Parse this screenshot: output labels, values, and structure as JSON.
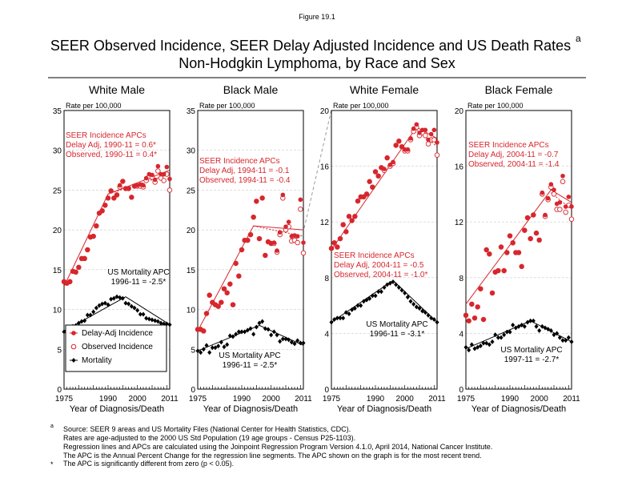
{
  "figure_label": "Figure 19.1",
  "title_line1": "SEER Observed Incidence, SEER Delay Adjusted Incidence and US Death Rates",
  "title_sup": "a",
  "title_line2": "Non-Hodgkin Lymphoma, by Race and Sex",
  "colors": {
    "incidence": "#d7262d",
    "mortality": "#000000",
    "grid": "#cccccc"
  },
  "legend": {
    "items": [
      "Delay-Adj Incidence",
      "Observed Incidence",
      "Mortality"
    ]
  },
  "footnotes": {
    "a_mark": "a",
    "star_mark": "*",
    "lines": [
      "Source: SEER 9 areas and US Mortality Files (National Center for Health Statistics, CDC).",
      "Rates are age-adjusted to the 2000 US Std Population (19 age groups - Census P25-1103).",
      "Regression lines and APCs are calculated using the Joinpoint Regression Program Version 4.1.0, April 2014, National Cancer Institute.",
      "The APC is the Annual Percent Change for the regression line segments. The APC shown on the graph is for the most recent trend."
    ],
    "star": "The APC is significantly different from zero (p < 0.05)."
  },
  "chart_data": [
    {
      "type": "scatter",
      "title": "White Male",
      "ylabel": "Rate per 100,000",
      "xlabel": "Year of Diagnosis/Death",
      "xlim": [
        1975,
        2011
      ],
      "ylim": [
        0,
        35
      ],
      "yticks": [
        0,
        5,
        10,
        15,
        20,
        25,
        30,
        35
      ],
      "xticks": [
        "1975",
        "1990",
        "2000",
        "2011"
      ],
      "grid": true,
      "legend_position": "bottom-left",
      "inc_text": [
        "SEER Incidence APCs",
        "Delay Adj, 1990-11 = 0.6*",
        "Observed, 1990-11 = 0.4*"
      ],
      "mort_text": [
        "US Mortality APC",
        "1996-11 = -2.5*"
      ],
      "delay_adj": [
        13.5,
        13.3,
        13.5,
        14.8,
        14.7,
        15.3,
        16.4,
        16.4,
        17.5,
        19.1,
        19.2,
        20.5,
        22.1,
        22.4,
        23.1,
        24.0,
        24.9,
        24.0,
        24.4,
        25.6,
        26.1,
        25.2,
        25.2,
        24.1,
        25.5,
        25.6,
        25.7,
        25.6,
        26.5,
        27.0,
        26.9,
        26.3,
        28.0,
        27.0,
        27.0,
        27.9,
        26.4
      ],
      "observed": [
        13.5,
        13.3,
        13.5,
        14.8,
        14.7,
        15.3,
        16.4,
        16.4,
        17.5,
        19.1,
        19.2,
        20.5,
        22.1,
        22.4,
        23.1,
        24.0,
        24.9,
        24.0,
        24.4,
        25.4,
        26.1,
        25.2,
        25.2,
        24.1,
        25.5,
        25.5,
        25.5,
        25.4,
        26.2,
        26.7,
        26.6,
        26.0,
        27.4,
        26.5,
        26.2,
        27.0,
        25.0
      ],
      "mortality": [
        7.2,
        7.4,
        7.6,
        7.9,
        8.0,
        8.3,
        8.5,
        8.6,
        9.3,
        9.3,
        9.7,
        10.2,
        10.5,
        10.7,
        10.8,
        10.6,
        11.3,
        11.4,
        11.6,
        11.5,
        11.4,
        10.8,
        10.7,
        10.4,
        10.2,
        9.9,
        9.4,
        9.4,
        8.9,
        8.8,
        8.7,
        8.6,
        8.5,
        8.3,
        8.2,
        8.2,
        8.1
      ],
      "inc_fit": [
        [
          1975,
          12.9
        ],
        [
          1990,
          24.5
        ],
        [
          2011,
          27.5
        ]
      ],
      "obs_fit": [
        [
          1990,
          24.5
        ],
        [
          2011,
          27.0
        ]
      ],
      "mort_fit": [
        [
          1975,
          7.3
        ],
        [
          1996,
          11.6
        ],
        [
          2011,
          8.1
        ]
      ]
    },
    {
      "type": "scatter",
      "title": "Black Male",
      "ylabel": "Rate per 100,000",
      "xlabel": "Year of Diagnosis/Death",
      "xlim": [
        1975,
        2011
      ],
      "ylim": [
        0,
        35
      ],
      "yticks": [
        0,
        5,
        10,
        15,
        20,
        25,
        30,
        35
      ],
      "xticks": [
        "1975",
        "1990",
        "2000",
        "2011"
      ],
      "grid": true,
      "inc_text": [
        "SEER Incidence APCs",
        "Delay Adj, 1994-11 = -0.1",
        "Observed, 1994-11 = -0.4"
      ],
      "mort_text": [
        "US Mortality APC",
        "1996-11 = -2.5*"
      ],
      "delay_adj": [
        7.5,
        7.5,
        7.3,
        9.5,
        11.8,
        10.9,
        10.6,
        10.4,
        10.9,
        12.6,
        12.1,
        13.2,
        10.6,
        15.8,
        14.2,
        17.5,
        18.7,
        18.7,
        19.4,
        21.6,
        23.6,
        18.9,
        24.0,
        16.8,
        18.5,
        18.3,
        18.4,
        17.4,
        19.7,
        24.4,
        20.4,
        21.0,
        19.2,
        19.3,
        19.2,
        23.8,
        18.4
      ],
      "observed": [
        7.5,
        7.5,
        7.3,
        9.5,
        11.8,
        10.9,
        10.6,
        10.4,
        10.9,
        12.6,
        12.1,
        13.2,
        10.6,
        15.8,
        14.2,
        17.5,
        18.7,
        18.7,
        19.4,
        21.6,
        23.6,
        18.9,
        24.0,
        16.8,
        18.5,
        18.3,
        18.3,
        17.2,
        19.4,
        24.0,
        20.0,
        20.4,
        18.6,
        18.7,
        18.4,
        22.6,
        17.1
      ],
      "mortality": [
        4.8,
        4.6,
        5.0,
        5.5,
        4.6,
        5.2,
        5.2,
        5.4,
        5.9,
        5.3,
        5.6,
        6.7,
        6.6,
        6.9,
        7.2,
        7.2,
        7.2,
        7.4,
        7.6,
        6.9,
        7.8,
        8.3,
        8.5,
        7.6,
        7.5,
        6.8,
        7.2,
        6.8,
        6.0,
        6.3,
        6.3,
        6.2,
        5.9,
        5.7,
        6.1,
        5.8,
        5.8
      ],
      "inc_fit": [
        [
          1975,
          7.3
        ],
        [
          1994,
          20.5
        ],
        [
          2011,
          20.0
        ]
      ],
      "obs_fit": [
        [
          1994,
          20.5
        ],
        [
          2011,
          19.2
        ]
      ],
      "mort_fit": [
        [
          1975,
          4.8
        ],
        [
          1996,
          8.0
        ],
        [
          2011,
          5.5
        ]
      ]
    },
    {
      "type": "scatter",
      "title": "White Female",
      "ylabel": "Rate per 100,000",
      "xlabel": "Year of Diagnosis/Death",
      "xlim": [
        1975,
        2011
      ],
      "ylim": [
        0,
        20
      ],
      "yticks": [
        0,
        4,
        8,
        12,
        16,
        20
      ],
      "xticks": [
        "1975",
        "1990",
        "2000",
        "2011"
      ],
      "grid": true,
      "inc_text": [
        "SEER Incidence APCs",
        "Delay Adj, 2004-11 = -0.5",
        "Observed, 2004-11 = -1.0*"
      ],
      "mort_text": [
        "US Mortality APC",
        "1996-11 = -3.1*"
      ],
      "delay_adj": [
        10.1,
        10.5,
        10.2,
        10.8,
        11.8,
        11.3,
        12.4,
        12.1,
        12.4,
        13.5,
        13.8,
        13.8,
        14.0,
        14.9,
        14.5,
        15.6,
        15.3,
        15.9,
        15.8,
        16.6,
        16.1,
        16.3,
        17.5,
        17.8,
        17.4,
        17.2,
        17.2,
        18.0,
        18.7,
        19.0,
        18.4,
        18.6,
        18.6,
        17.9,
        18.3,
        18.6,
        17.7
      ],
      "observed": [
        10.1,
        10.5,
        10.2,
        10.8,
        11.8,
        11.3,
        12.4,
        12.1,
        12.4,
        13.5,
        13.8,
        13.8,
        14.0,
        14.9,
        14.5,
        15.6,
        15.3,
        15.9,
        15.7,
        16.6,
        16.0,
        16.2,
        17.5,
        17.8,
        17.4,
        17.1,
        17.1,
        17.9,
        18.5,
        18.8,
        18.2,
        18.4,
        18.2,
        17.6,
        17.9,
        17.9,
        16.8
      ],
      "mortality": [
        4.8,
        5.0,
        5.1,
        5.1,
        5.1,
        5.5,
        5.4,
        5.7,
        5.8,
        6.0,
        6.0,
        6.3,
        6.4,
        6.5,
        6.7,
        6.7,
        7.0,
        7.0,
        7.3,
        7.5,
        7.6,
        7.7,
        7.5,
        7.3,
        7.1,
        6.9,
        6.6,
        6.3,
        6.1,
        5.9,
        5.8,
        5.6,
        5.5,
        5.3,
        5.1,
        5.0,
        4.8
      ],
      "inc_fit": [
        [
          1975,
          10.0
        ],
        [
          2004,
          18.8
        ],
        [
          2011,
          18.0
        ]
      ],
      "obs_fit": [
        [
          2004,
          18.6
        ],
        [
          2011,
          17.4
        ]
      ],
      "mort_fit": [
        [
          1975,
          4.8
        ],
        [
          1996,
          7.8
        ],
        [
          2011,
          4.8
        ]
      ]
    },
    {
      "type": "scatter",
      "title": "Black Female",
      "ylabel": "Rate per 100,000",
      "xlabel": "Year of Diagnosis/Death",
      "xlim": [
        1975,
        2011
      ],
      "ylim": [
        0,
        20
      ],
      "yticks": [
        0,
        4,
        8,
        12,
        16,
        20
      ],
      "xticks": [
        "1975",
        "1990",
        "2000",
        "2011"
      ],
      "grid": true,
      "inc_text": [
        "SEER Incidence APCs",
        "Delay Adj, 2004-11 = -0.7",
        "Observed, 2004-11 = -1.4"
      ],
      "mort_text": [
        "US Mortality APC",
        "1997-11 = -2.7*"
      ],
      "delay_adj": [
        5.3,
        4.9,
        6.1,
        5.1,
        5.9,
        7.2,
        5.0,
        10.0,
        9.7,
        6.9,
        8.4,
        8.5,
        10.2,
        8.5,
        9.8,
        11.0,
        10.5,
        9.8,
        9.8,
        8.8,
        11.4,
        12.3,
        10.8,
        12.5,
        11.2,
        10.7,
        14.1,
        12.5,
        13.7,
        14.7,
        14.3,
        13.3,
        13.4,
        15.3,
        13.1,
        13.8,
        13.1
      ],
      "observed": [
        5.3,
        4.9,
        6.1,
        5.1,
        5.9,
        7.2,
        5.0,
        10.0,
        9.7,
        6.9,
        8.4,
        8.5,
        10.2,
        8.5,
        9.8,
        11.0,
        10.5,
        9.8,
        9.8,
        8.8,
        11.4,
        12.3,
        10.8,
        12.5,
        11.2,
        10.7,
        14.0,
        12.4,
        13.6,
        14.5,
        14.0,
        12.9,
        12.9,
        14.9,
        12.7,
        13.2,
        12.2
      ],
      "mortality": [
        3.0,
        2.8,
        3.2,
        2.9,
        3.0,
        3.1,
        3.3,
        3.3,
        3.2,
        3.4,
        3.9,
        3.7,
        3.7,
        3.9,
        4.1,
        4.1,
        4.6,
        4.4,
        4.5,
        4.6,
        4.5,
        4.8,
        4.9,
        4.9,
        4.5,
        4.2,
        4.5,
        4.4,
        4.3,
        4.2,
        3.9,
        4.0,
        3.7,
        3.5,
        3.5,
        3.7,
        3.4
      ],
      "inc_fit": [
        [
          1975,
          6.1
        ],
        [
          2004,
          14.3
        ],
        [
          2011,
          13.4
        ]
      ],
      "obs_fit": [
        [
          2004,
          14.1
        ],
        [
          2011,
          12.9
        ]
      ],
      "mort_fit": [
        [
          1975,
          2.9
        ],
        [
          1997,
          4.9
        ],
        [
          2011,
          3.4
        ]
      ]
    }
  ]
}
